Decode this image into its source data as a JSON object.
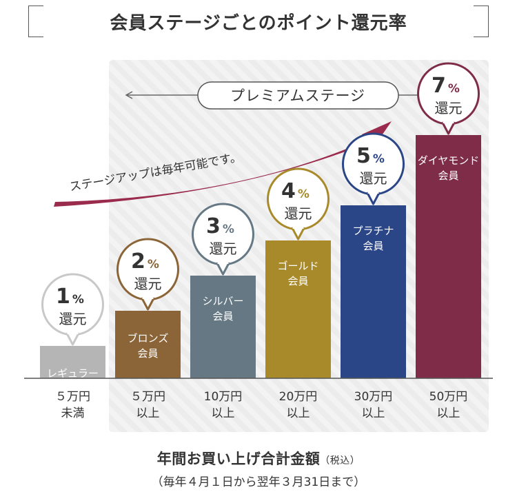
{
  "page": {
    "title": "会員ステージごとのポイント還元率"
  },
  "premium": {
    "label": "プレミアムステージ"
  },
  "arrow": {
    "label": "ステージアップは毎年可能です。"
  },
  "footer": {
    "title": "年間お買い上げ合計金額",
    "note": "（税込）",
    "sub": "（毎年４月１日から翌年３月31日まで）"
  },
  "colors": {
    "bronze": "#8b6437",
    "silver": "#657884",
    "gold": "#a88a2a",
    "platinum": "#2b4687",
    "diamond": "#7f2c48",
    "regular": "#b5b5b5",
    "arrow": "#9a2b4d"
  },
  "chart_data": {
    "type": "bar",
    "title": "会員ステージごとのポイント還元率",
    "xlabel": "年間お買い上げ合計金額（税込）",
    "ylabel": "",
    "categories": [
      "レギュラー会員",
      "ブロンズ会員",
      "シルバー会員",
      "ゴールド会員",
      "プラチナ会員",
      "ダイヤモンド会員"
    ],
    "values": [
      1,
      2,
      3,
      4,
      5,
      7
    ],
    "unit": "%",
    "value_suffix": "還元",
    "bar_labels": [
      [
        "レギュラー",
        "会員"
      ],
      [
        "ブロンズ",
        "会員"
      ],
      [
        "シルバー",
        "会員"
      ],
      [
        "ゴールド",
        "会員"
      ],
      [
        "プラチナ",
        "会員"
      ],
      [
        "ダイヤモンド",
        "会員"
      ]
    ],
    "thresholds": [
      [
        "５万円",
        "未満"
      ],
      [
        "５万円",
        "以上"
      ],
      [
        "10万円",
        "以上"
      ],
      [
        "20万円",
        "以上"
      ],
      [
        "30万円",
        "以上"
      ],
      [
        "50万円",
        "以上"
      ]
    ],
    "colors": [
      "#b5b5b5",
      "#8b6437",
      "#657884",
      "#a88a2a",
      "#2b4687",
      "#7f2c48"
    ],
    "legend": "none",
    "grid": false
  }
}
